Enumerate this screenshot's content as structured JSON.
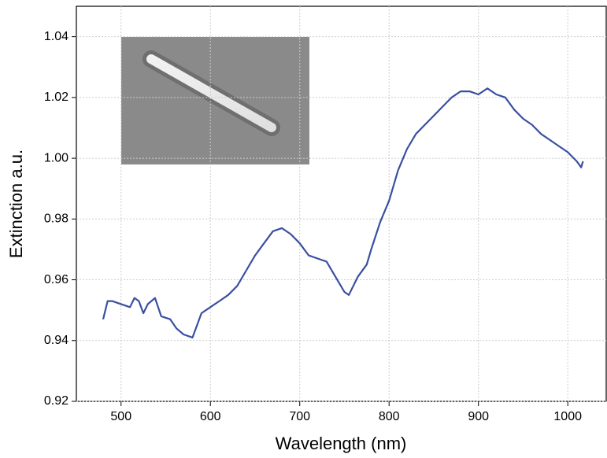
{
  "chart_data": {
    "type": "line",
    "x_label": "Wavelength (nm)",
    "y_label": "Extinction a.u.",
    "x": [
      480,
      485,
      490,
      500,
      510,
      515,
      520,
      525,
      530,
      538,
      545,
      555,
      562,
      570,
      580,
      585,
      590,
      600,
      610,
      620,
      630,
      640,
      650,
      660,
      670,
      680,
      690,
      700,
      710,
      720,
      730,
      740,
      750,
      755,
      765,
      775,
      780,
      790,
      800,
      810,
      820,
      830,
      840,
      850,
      860,
      870,
      880,
      890,
      900,
      910,
      920,
      930,
      940,
      950,
      960,
      970,
      980,
      990,
      1000,
      1010,
      1015,
      1017
    ],
    "series": [
      {
        "color": "#3a4fa0",
        "values": [
          0.947,
          0.953,
          0.953,
          0.952,
          0.951,
          0.954,
          0.953,
          0.949,
          0.952,
          0.954,
          0.948,
          0.947,
          0.944,
          0.942,
          0.941,
          0.945,
          0.949,
          0.951,
          0.953,
          0.955,
          0.958,
          0.963,
          0.968,
          0.972,
          0.976,
          0.977,
          0.975,
          0.972,
          0.968,
          0.967,
          0.966,
          0.961,
          0.956,
          0.955,
          0.961,
          0.965,
          0.97,
          0.979,
          0.986,
          0.996,
          1.003,
          1.008,
          1.011,
          1.014,
          1.017,
          1.02,
          1.022,
          1.022,
          1.021,
          1.023,
          1.021,
          1.02,
          1.016,
          1.013,
          1.011,
          1.008,
          1.006,
          1.004,
          1.002,
          0.999,
          0.997,
          0.999
        ]
      }
    ],
    "xlim": [
      450,
      1043
    ],
    "xticks": [
      500,
      600,
      700,
      800,
      900,
      1000
    ],
    "ylim": [
      0.92,
      1.05
    ],
    "yticks": [
      0.92,
      0.94,
      0.96,
      0.98,
      {
        "value": 1,
        "label": "1.00"
      },
      1.02,
      1.04
    ],
    "grid": true
  }
}
